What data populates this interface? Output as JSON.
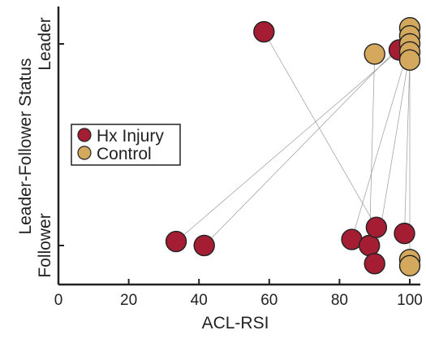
{
  "chart_data": {
    "type": "scatter",
    "xlabel": "ACL-RSI",
    "ylabel": "Leader-Follower Status",
    "xlim": [
      0,
      100
    ],
    "x_ticks": [
      0,
      20,
      40,
      60,
      80,
      100
    ],
    "y_categories": [
      "Follower",
      "Leader"
    ],
    "grid": false,
    "legend_position": "center-left",
    "series": [
      {
        "name": "Hx Injury",
        "color": "#a51d33",
        "points": [
          {
            "x": 58.5,
            "y": 1.06
          },
          {
            "x": 97,
            "y": 0.97
          },
          {
            "x": 33.5,
            "y": 0.02
          },
          {
            "x": 41.5,
            "y": 0.0
          },
          {
            "x": 83.5,
            "y": 0.03
          },
          {
            "x": 88.5,
            "y": 0.0
          },
          {
            "x": 90.5,
            "y": 0.09
          },
          {
            "x": 90,
            "y": -0.09
          },
          {
            "x": 98.5,
            "y": 0.06
          }
        ]
      },
      {
        "name": "Control",
        "color": "#d4a95e",
        "points": [
          {
            "x": 90,
            "y": 0.95
          },
          {
            "x": 100,
            "y": 1.08
          },
          {
            "x": 100,
            "y": 1.04
          },
          {
            "x": 100,
            "y": 1.0
          },
          {
            "x": 100,
            "y": 0.96
          },
          {
            "x": 100,
            "y": 0.92
          },
          {
            "x": 100,
            "y": -0.07
          },
          {
            "x": 100,
            "y": -0.1
          }
        ]
      }
    ],
    "connections": [
      [
        [
          58.5,
          1.06
        ],
        [
          90.5,
          0.09
        ]
      ],
      [
        [
          97,
          0.97
        ],
        [
          33.5,
          0.02
        ]
      ],
      [
        [
          100,
          1.04
        ],
        [
          41.5,
          0.0
        ]
      ],
      [
        [
          90,
          0.95
        ],
        [
          88.5,
          0.0
        ]
      ],
      [
        [
          100,
          1.0
        ],
        [
          83.5,
          0.03
        ]
      ],
      [
        [
          100,
          0.96
        ],
        [
          90,
          -0.09
        ]
      ],
      [
        [
          100,
          0.92
        ],
        [
          98.5,
          0.06
        ]
      ],
      [
        [
          100,
          1.08
        ],
        [
          100,
          -0.07
        ]
      ]
    ]
  }
}
